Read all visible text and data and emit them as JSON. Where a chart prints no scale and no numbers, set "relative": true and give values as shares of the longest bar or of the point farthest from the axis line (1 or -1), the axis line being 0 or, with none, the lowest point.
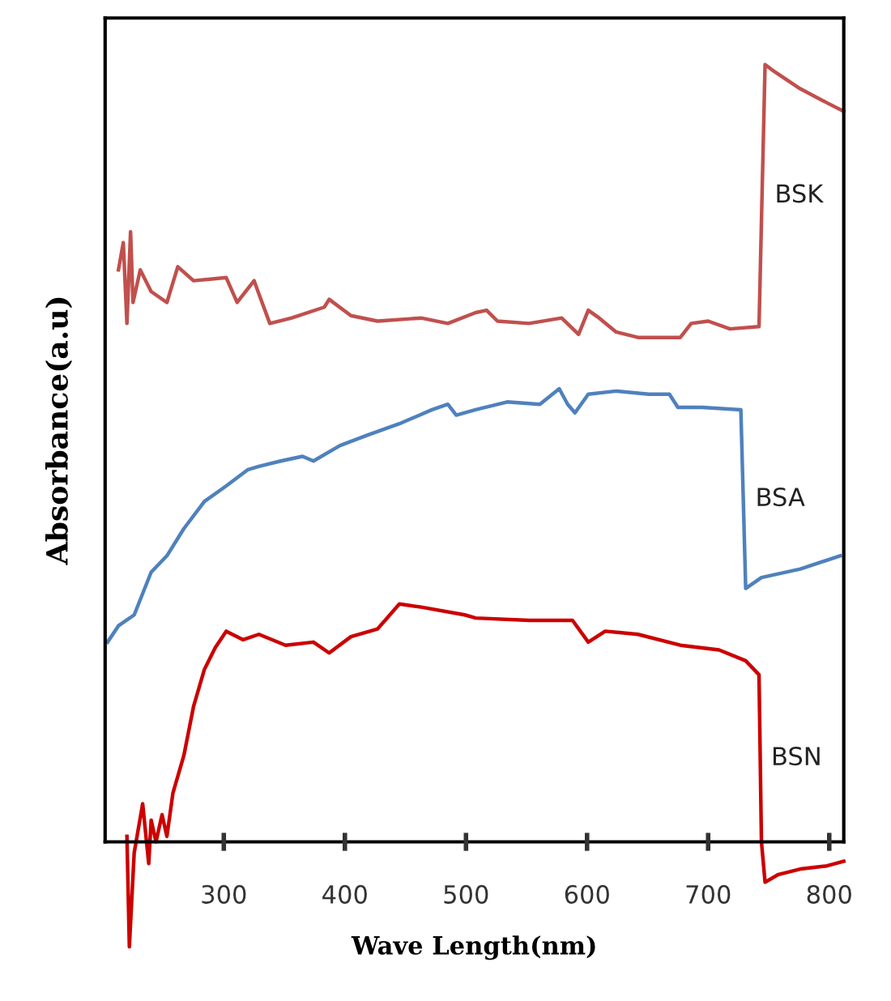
{
  "chart_data": {
    "type": "line",
    "relative": true,
    "xlabel": "Wave Length(nm)",
    "ylabel": "Absorbance(a.u)",
    "xlim": [
      202,
      812
    ],
    "xticks": [
      300,
      400,
      500,
      600,
      700,
      800
    ],
    "grid": false,
    "legend": false,
    "series": [
      {
        "name": "BSK",
        "color": "#c0504d",
        "x": [
          213,
          217,
          220,
          223,
          225,
          231,
          240,
          253,
          262,
          275,
          302,
          311,
          325,
          329,
          338,
          356,
          383,
          387,
          405,
          427,
          463,
          485,
          508,
          517,
          526,
          552,
          579,
          593,
          601,
          610,
          624,
          642,
          677,
          686,
          700,
          718,
          742,
          747,
          753,
          776,
          798,
          812
        ],
        "values": [
          0.736,
          0.771,
          0.667,
          0.785,
          0.694,
          0.736,
          0.708,
          0.694,
          0.74,
          0.722,
          0.726,
          0.694,
          0.722,
          0.705,
          0.667,
          0.674,
          0.688,
          0.698,
          0.677,
          0.67,
          0.674,
          0.667,
          0.681,
          0.684,
          0.67,
          0.667,
          0.674,
          0.653,
          0.684,
          0.674,
          0.656,
          0.649,
          0.649,
          0.667,
          0.67,
          0.66,
          0.663,
          1.0,
          0.993,
          0.969,
          0.951,
          0.94
        ]
      },
      {
        "name": "BSA",
        "color": "#4f81bd",
        "x": [
          204,
          213,
          226,
          240,
          253,
          267,
          284,
          302,
          320,
          329,
          347,
          365,
          374,
          396,
          418,
          445,
          472,
          485,
          492,
          508,
          534,
          561,
          577,
          584,
          590,
          601,
          624,
          651,
          668,
          675,
          695,
          727,
          731,
          744,
          776,
          809
        ],
        "values": [
          0.257,
          0.278,
          0.292,
          0.347,
          0.368,
          0.403,
          0.438,
          0.458,
          0.479,
          0.483,
          0.49,
          0.496,
          0.49,
          0.51,
          0.523,
          0.538,
          0.556,
          0.563,
          0.549,
          0.556,
          0.566,
          0.563,
          0.583,
          0.563,
          0.552,
          0.576,
          0.58,
          0.576,
          0.576,
          0.559,
          0.559,
          0.556,
          0.326,
          0.34,
          0.351,
          0.368
        ]
      },
      {
        "name": "BSN",
        "color": "#cc0000",
        "x": [
          220,
          222,
          226,
          233,
          238,
          240,
          244,
          249,
          253,
          258,
          267,
          275,
          284,
          293,
          302,
          316,
          329,
          351,
          374,
          387,
          405,
          427,
          445,
          463,
          499,
          508,
          552,
          588,
          601,
          615,
          642,
          677,
          709,
          731,
          742,
          744,
          747,
          758,
          776,
          798,
          812
        ],
        "values": [
          0.007,
          -0.135,
          -0.014,
          0.049,
          -0.028,
          0.028,
          0.0,
          0.035,
          0.007,
          0.063,
          0.111,
          0.174,
          0.222,
          0.25,
          0.271,
          0.26,
          0.267,
          0.253,
          0.257,
          0.243,
          0.264,
          0.274,
          0.306,
          0.302,
          0.292,
          0.288,
          0.285,
          0.285,
          0.257,
          0.271,
          0.267,
          0.253,
          0.247,
          0.233,
          0.215,
          0.0,
          -0.052,
          -0.042,
          -0.035,
          -0.031,
          -0.025
        ]
      }
    ]
  }
}
